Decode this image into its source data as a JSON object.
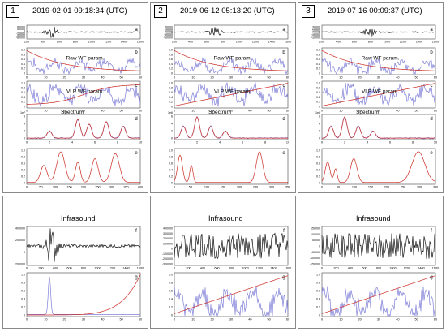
{
  "columns": [
    {
      "number": "1",
      "title": "2019-02-01 09:18:34 (UTC)",
      "infrasound_title": "Infrasound",
      "panels": [
        {
          "letter": "a",
          "yticks": [
            "80000",
            "40000",
            "0",
            "-20000",
            "-40000",
            "-60000"
          ],
          "xticks": [
            "200",
            "400",
            "600",
            "800",
            "1000",
            "1200",
            "1400",
            "1600"
          ]
        },
        {
          "letter": "b",
          "label": "Raw WF param.",
          "yticks": [
            "1.0",
            "0.8",
            "0.6",
            "0.4",
            "0.2",
            "0"
          ],
          "xticks": [
            "0",
            "10",
            "20",
            "30",
            "40",
            "50",
            "60"
          ]
        },
        {
          "letter": "c",
          "label": "VLP WF param.",
          "yticks": [
            "1.0",
            "0.8",
            "0.6",
            "0.4",
            "0.2",
            "0"
          ],
          "xticks": [
            "0",
            "10",
            "20",
            "30",
            "40",
            "50",
            "60"
          ]
        },
        {
          "letter": "d",
          "label": "Spectrum",
          "exp": "1e7",
          "yticks": [
            "6",
            "4",
            "2",
            "0"
          ],
          "xticks": [
            "0",
            "2",
            "4",
            "6",
            "8",
            "10"
          ]
        },
        {
          "letter": "e",
          "yticks": [
            "1.0",
            "0.8",
            "0.6",
            "0.4",
            "0.2",
            "0"
          ],
          "xticks": [
            "0",
            "50",
            "100",
            "150",
            "200",
            "250",
            "300",
            "350",
            "400"
          ]
        },
        {
          "letter": "f",
          "yticks": [
            "400000",
            "200000",
            "0",
            "-200000"
          ],
          "xticks": [
            "0",
            "200",
            "400",
            "600",
            "800",
            "1000",
            "1200",
            "1400",
            "1600"
          ]
        },
        {
          "letter": "g",
          "yticks": [
            "1.0",
            "0.8",
            "0.6",
            "0.4",
            "0.2",
            "0"
          ],
          "xticks": [
            "0",
            "10",
            "20",
            "30",
            "40",
            "50",
            "60"
          ]
        }
      ]
    },
    {
      "number": "2",
      "title": "2019-06-12 05:13:20 (UTC)",
      "infrasound_title": "Infrasound",
      "panels": [
        {
          "letter": "a",
          "yticks": [
            "30000",
            "20000",
            "10000",
            "0",
            "-10000",
            "-20000",
            "-30000"
          ],
          "xticks": [
            "200",
            "400",
            "600",
            "800",
            "1000",
            "1200",
            "1400",
            "1600"
          ]
        },
        {
          "letter": "b",
          "label": "Raw WF param.",
          "yticks": [
            "1.0",
            "0.8",
            "0.6",
            "0.4",
            "0.2",
            "0"
          ],
          "xticks": [
            "0",
            "10",
            "20",
            "30",
            "40",
            "50",
            "60"
          ]
        },
        {
          "letter": "c",
          "label": "VLP WF param.",
          "yticks": [
            "1.0",
            "0.8",
            "0.6",
            "0.4",
            "0.2",
            "0"
          ],
          "xticks": [
            "0",
            "10",
            "20",
            "30",
            "40",
            "50",
            "60"
          ]
        },
        {
          "letter": "d",
          "label": "Spectrum",
          "exp": "1e6",
          "yticks": [
            "6",
            "4",
            "2",
            "0"
          ],
          "xticks": [
            "0",
            "2",
            "4",
            "6",
            "8",
            "10"
          ]
        },
        {
          "letter": "e",
          "yticks": [
            "1.0",
            "0.8",
            "0.6",
            "0.4",
            "0.2",
            "0"
          ],
          "xticks": [
            "0",
            "50",
            "100",
            "150",
            "200",
            "250",
            "300",
            "350"
          ]
        },
        {
          "letter": "f",
          "yticks": [
            "400000",
            "300000",
            "200000",
            "100000",
            "0",
            "-100000",
            "-200000",
            "-300000"
          ],
          "xticks": [
            "0",
            "200",
            "400",
            "600",
            "800",
            "1000",
            "1200",
            "1400",
            "1600"
          ]
        },
        {
          "letter": "g",
          "yticks": [
            "1.0",
            "0.8",
            "0.6",
            "0.4",
            "0.2",
            "0"
          ],
          "xticks": [
            "0",
            "10",
            "20",
            "30",
            "40",
            "50",
            "60"
          ]
        }
      ]
    },
    {
      "number": "3",
      "title": "2019-07-16 00:09:37 (UTC)",
      "infrasound_title": "Infrasound",
      "panels": [
        {
          "letter": "a",
          "yticks": [
            "30000",
            "20000",
            "10000",
            "0",
            "-10000",
            "-20000",
            "-30000"
          ],
          "xticks": [
            "200",
            "400",
            "600",
            "800",
            "1000",
            "1200",
            "1400",
            "1600"
          ]
        },
        {
          "letter": "b",
          "label": "Raw WF param.",
          "yticks": [
            "1.0",
            "0.8",
            "0.6",
            "0.4",
            "0.2",
            "0"
          ],
          "xticks": [
            "0",
            "10",
            "20",
            "30",
            "40",
            "50",
            "60"
          ]
        },
        {
          "letter": "c",
          "label": "VLP WF param.",
          "yticks": [
            "1.0",
            "0.8",
            "0.6",
            "0.4",
            "0.2",
            "0"
          ],
          "xticks": [
            "0",
            "10",
            "20",
            "30",
            "40",
            "50",
            "60"
          ]
        },
        {
          "letter": "d",
          "label": "Spectrum",
          "exp": "1e6",
          "yticks": [
            "6",
            "4",
            "2",
            "0"
          ],
          "xticks": [
            "0",
            "2",
            "4",
            "6",
            "8",
            "10"
          ]
        },
        {
          "letter": "e",
          "yticks": [
            "1.0",
            "0.8",
            "0.6",
            "0.4",
            "0.2",
            "0"
          ],
          "xticks": [
            "0",
            "50",
            "100",
            "150",
            "200",
            "250",
            "300",
            "350"
          ]
        },
        {
          "letter": "f",
          "yticks": [
            "150000",
            "100000",
            "50000",
            "0",
            "-50000",
            "-100000",
            "-150000"
          ],
          "xticks": [
            "0",
            "200",
            "400",
            "600",
            "800",
            "1000",
            "1200",
            "1400",
            "1600"
          ]
        },
        {
          "letter": "g",
          "yticks": [
            "1.0",
            "0.8",
            "0.6",
            "0.4",
            "0.2",
            "0"
          ],
          "xticks": [
            "0",
            "10",
            "20",
            "30",
            "40",
            "50",
            "60"
          ]
        }
      ]
    }
  ],
  "colors": {
    "red": "#cc2a22",
    "blue": "#7f7fd8",
    "black": "#111111",
    "frame": "#888888"
  }
}
